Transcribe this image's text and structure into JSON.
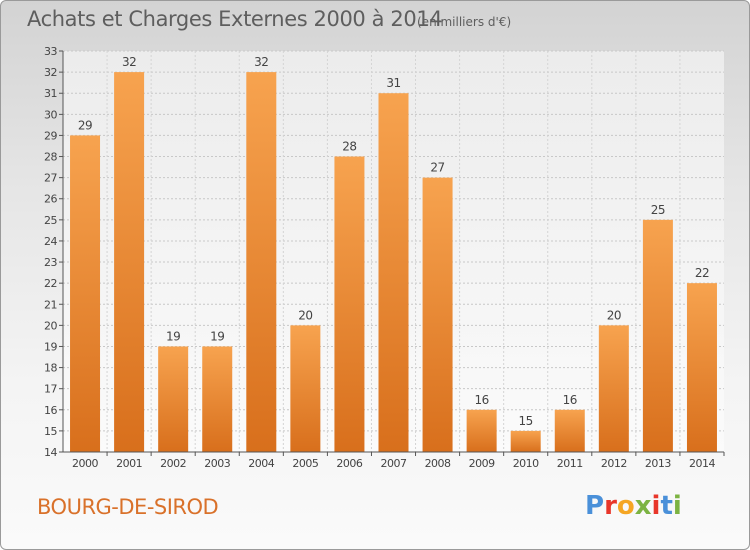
{
  "header": {
    "title": "Achats et Charges Externes 2000 à 2014",
    "subtitle": "(en milliers d'€)"
  },
  "footer": {
    "place": "BOURG-DE-SIROD",
    "logo_text": "Proxiti",
    "logo_colors": [
      "#4a90d9",
      "#e8362a",
      "#f5a623",
      "#7cb342",
      "#e8362a",
      "#4a90d9",
      "#7cb342"
    ]
  },
  "chart_data": {
    "type": "bar",
    "categories": [
      "2000",
      "2001",
      "2002",
      "2003",
      "2004",
      "2005",
      "2006",
      "2007",
      "2008",
      "2009",
      "2010",
      "2011",
      "2012",
      "2013",
      "2014"
    ],
    "values": [
      29,
      32,
      19,
      19,
      32,
      20,
      28,
      31,
      27,
      16,
      15,
      16,
      20,
      25,
      22
    ],
    "ylim": [
      14,
      33
    ],
    "yticks": [
      14,
      15,
      16,
      17,
      18,
      19,
      20,
      21,
      22,
      23,
      24,
      25,
      26,
      27,
      28,
      29,
      30,
      31,
      32,
      33
    ],
    "grid": true,
    "bar_color_top": "#f7a34f",
    "bar_color_bottom": "#d86f1c"
  }
}
